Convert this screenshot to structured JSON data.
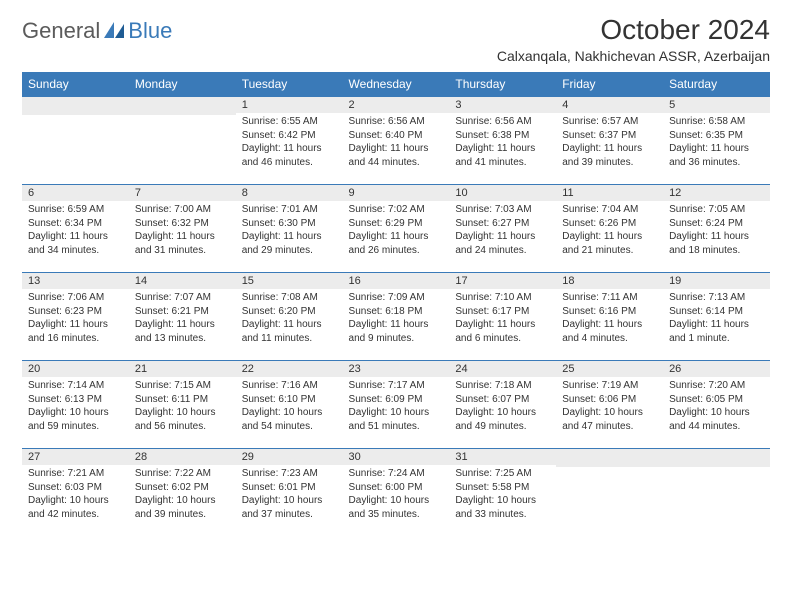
{
  "logo": {
    "part1": "General",
    "part2": "Blue"
  },
  "title": "October 2024",
  "location": "Calxanqala, Nakhichevan ASSR, Azerbaijan",
  "day_headers": [
    "Sunday",
    "Monday",
    "Tuesday",
    "Wednesday",
    "Thursday",
    "Friday",
    "Saturday"
  ],
  "colors": {
    "header_bg": "#3a7ab8",
    "header_fg": "#ffffff",
    "daynum_bg": "#ececec",
    "row_border": "#3a7ab8",
    "text": "#333333",
    "logo_gray": "#5b5b5b",
    "logo_blue": "#3a7ab8"
  },
  "weeks": [
    [
      null,
      null,
      {
        "n": "1",
        "sr": "6:55 AM",
        "ss": "6:42 PM",
        "dl": "11 hours and 46 minutes."
      },
      {
        "n": "2",
        "sr": "6:56 AM",
        "ss": "6:40 PM",
        "dl": "11 hours and 44 minutes."
      },
      {
        "n": "3",
        "sr": "6:56 AM",
        "ss": "6:38 PM",
        "dl": "11 hours and 41 minutes."
      },
      {
        "n": "4",
        "sr": "6:57 AM",
        "ss": "6:37 PM",
        "dl": "11 hours and 39 minutes."
      },
      {
        "n": "5",
        "sr": "6:58 AM",
        "ss": "6:35 PM",
        "dl": "11 hours and 36 minutes."
      }
    ],
    [
      {
        "n": "6",
        "sr": "6:59 AM",
        "ss": "6:34 PM",
        "dl": "11 hours and 34 minutes."
      },
      {
        "n": "7",
        "sr": "7:00 AM",
        "ss": "6:32 PM",
        "dl": "11 hours and 31 minutes."
      },
      {
        "n": "8",
        "sr": "7:01 AM",
        "ss": "6:30 PM",
        "dl": "11 hours and 29 minutes."
      },
      {
        "n": "9",
        "sr": "7:02 AM",
        "ss": "6:29 PM",
        "dl": "11 hours and 26 minutes."
      },
      {
        "n": "10",
        "sr": "7:03 AM",
        "ss": "6:27 PM",
        "dl": "11 hours and 24 minutes."
      },
      {
        "n": "11",
        "sr": "7:04 AM",
        "ss": "6:26 PM",
        "dl": "11 hours and 21 minutes."
      },
      {
        "n": "12",
        "sr": "7:05 AM",
        "ss": "6:24 PM",
        "dl": "11 hours and 18 minutes."
      }
    ],
    [
      {
        "n": "13",
        "sr": "7:06 AM",
        "ss": "6:23 PM",
        "dl": "11 hours and 16 minutes."
      },
      {
        "n": "14",
        "sr": "7:07 AM",
        "ss": "6:21 PM",
        "dl": "11 hours and 13 minutes."
      },
      {
        "n": "15",
        "sr": "7:08 AM",
        "ss": "6:20 PM",
        "dl": "11 hours and 11 minutes."
      },
      {
        "n": "16",
        "sr": "7:09 AM",
        "ss": "6:18 PM",
        "dl": "11 hours and 9 minutes."
      },
      {
        "n": "17",
        "sr": "7:10 AM",
        "ss": "6:17 PM",
        "dl": "11 hours and 6 minutes."
      },
      {
        "n": "18",
        "sr": "7:11 AM",
        "ss": "6:16 PM",
        "dl": "11 hours and 4 minutes."
      },
      {
        "n": "19",
        "sr": "7:13 AM",
        "ss": "6:14 PM",
        "dl": "11 hours and 1 minute."
      }
    ],
    [
      {
        "n": "20",
        "sr": "7:14 AM",
        "ss": "6:13 PM",
        "dl": "10 hours and 59 minutes."
      },
      {
        "n": "21",
        "sr": "7:15 AM",
        "ss": "6:11 PM",
        "dl": "10 hours and 56 minutes."
      },
      {
        "n": "22",
        "sr": "7:16 AM",
        "ss": "6:10 PM",
        "dl": "10 hours and 54 minutes."
      },
      {
        "n": "23",
        "sr": "7:17 AM",
        "ss": "6:09 PM",
        "dl": "10 hours and 51 minutes."
      },
      {
        "n": "24",
        "sr": "7:18 AM",
        "ss": "6:07 PM",
        "dl": "10 hours and 49 minutes."
      },
      {
        "n": "25",
        "sr": "7:19 AM",
        "ss": "6:06 PM",
        "dl": "10 hours and 47 minutes."
      },
      {
        "n": "26",
        "sr": "7:20 AM",
        "ss": "6:05 PM",
        "dl": "10 hours and 44 minutes."
      }
    ],
    [
      {
        "n": "27",
        "sr": "7:21 AM",
        "ss": "6:03 PM",
        "dl": "10 hours and 42 minutes."
      },
      {
        "n": "28",
        "sr": "7:22 AM",
        "ss": "6:02 PM",
        "dl": "10 hours and 39 minutes."
      },
      {
        "n": "29",
        "sr": "7:23 AM",
        "ss": "6:01 PM",
        "dl": "10 hours and 37 minutes."
      },
      {
        "n": "30",
        "sr": "7:24 AM",
        "ss": "6:00 PM",
        "dl": "10 hours and 35 minutes."
      },
      {
        "n": "31",
        "sr": "7:25 AM",
        "ss": "5:58 PM",
        "dl": "10 hours and 33 minutes."
      },
      null,
      null
    ]
  ],
  "labels": {
    "sunrise": "Sunrise:",
    "sunset": "Sunset:",
    "daylight": "Daylight:"
  }
}
